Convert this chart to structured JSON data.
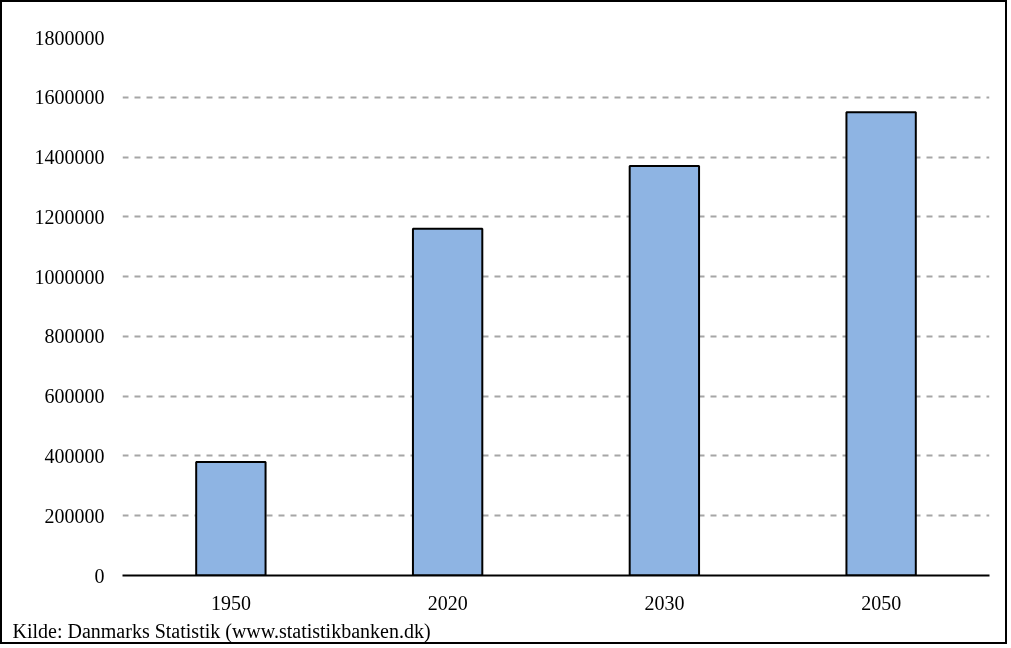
{
  "chart_data": {
    "type": "bar",
    "categories": [
      "1950",
      "2020",
      "2030",
      "2050"
    ],
    "values": [
      380000,
      1160000,
      1370000,
      1550000
    ],
    "color": "#8eb4e3",
    "ylim": [
      0,
      1800000
    ],
    "yticks": [
      0,
      200000,
      400000,
      600000,
      800000,
      1000000,
      1200000,
      1400000,
      1600000,
      1800000
    ],
    "grid": "y",
    "annotations": [
      "Kilde: Danmarks Statistik (www.statistikbanken.dk)"
    ]
  }
}
